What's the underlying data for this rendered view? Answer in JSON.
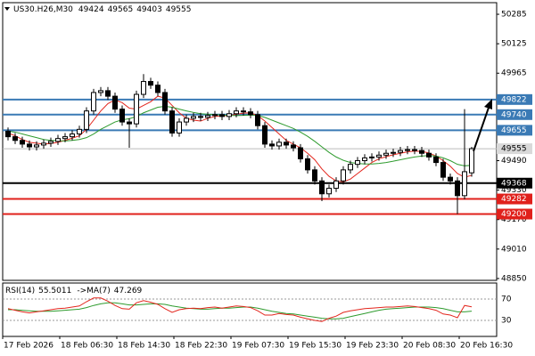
{
  "chart_data": {
    "type": "candlestick",
    "title": "US30.H26,M30",
    "categories": [
      "17 Feb 2026",
      null,
      null,
      null,
      null,
      null,
      null,
      null,
      "18 Feb 06:30",
      null,
      null,
      null,
      null,
      null,
      null,
      null,
      "18 Feb 14:30",
      null,
      null,
      null,
      null,
      null,
      null,
      null,
      "18 Feb 22:30",
      null,
      null,
      null,
      null,
      null,
      null,
      null,
      "19 Feb 07:30",
      null,
      null,
      null,
      null,
      null,
      null,
      null,
      "19 Feb 15:30",
      null,
      null,
      null,
      null,
      null,
      null,
      null,
      "19 Feb 23:30",
      null,
      null,
      null,
      null,
      null,
      null,
      null,
      "20 Feb 08:30",
      null,
      null,
      null,
      null,
      null,
      null,
      null,
      "20 Feb 16:30",
      null
    ],
    "open": [
      49650,
      49620,
      49600,
      49580,
      49565,
      49575,
      49585,
      49595,
      49610,
      49620,
      49635,
      49660,
      49760,
      49860,
      49870,
      49840,
      49770,
      49700,
      49690,
      49850,
      49920,
      49900,
      49860,
      49760,
      49640,
      49700,
      49720,
      49730,
      49725,
      49735,
      49740,
      49730,
      49745,
      49760,
      49755,
      49740,
      49680,
      49580,
      49570,
      49590,
      49575,
      49560,
      49500,
      49440,
      49380,
      49310,
      49340,
      49380,
      49440,
      49470,
      49490,
      49505,
      49510,
      49520,
      49530,
      49535,
      49545,
      49550,
      49545,
      49530,
      49510,
      49480,
      49400,
      49380,
      49300,
      49424
    ],
    "high": [
      49670,
      49640,
      49620,
      49600,
      49595,
      49605,
      49615,
      49630,
      49640,
      49655,
      49680,
      49780,
      49880,
      49890,
      49890,
      49860,
      49790,
      49720,
      49870,
      49960,
      49940,
      49920,
      49880,
      49780,
      49720,
      49740,
      49750,
      49750,
      49755,
      49760,
      49760,
      49765,
      49780,
      49780,
      49775,
      49760,
      49700,
      49600,
      49610,
      49610,
      49595,
      49580,
      49520,
      49460,
      49400,
      49360,
      49400,
      49460,
      49490,
      49510,
      49525,
      49530,
      49540,
      49550,
      49555,
      49565,
      49570,
      49570,
      49565,
      49550,
      49530,
      49500,
      49420,
      49400,
      49770,
      49565
    ],
    "low": [
      49600,
      49580,
      49560,
      49545,
      49545,
      49555,
      49565,
      49575,
      49590,
      49600,
      49615,
      49640,
      49740,
      49840,
      49820,
      49750,
      49680,
      49560,
      49670,
      49830,
      49880,
      49840,
      49740,
      49620,
      49620,
      49680,
      49700,
      49705,
      49705,
      49715,
      49710,
      49710,
      49725,
      49735,
      49720,
      49660,
      49560,
      49550,
      49550,
      49555,
      49540,
      49480,
      49420,
      49360,
      49270,
      49290,
      49320,
      49360,
      49420,
      49450,
      49470,
      49485,
      49490,
      49500,
      49510,
      49515,
      49525,
      49525,
      49510,
      49490,
      49460,
      49380,
      49360,
      49200,
      49280,
      49403
    ],
    "close": [
      49620,
      49600,
      49580,
      49565,
      49575,
      49585,
      49595,
      49610,
      49620,
      49635,
      49660,
      49760,
      49860,
      49870,
      49840,
      49770,
      49700,
      49690,
      49850,
      49920,
      49900,
      49860,
      49760,
      49640,
      49700,
      49720,
      49730,
      49725,
      49735,
      49740,
      49730,
      49745,
      49760,
      49755,
      49740,
      49680,
      49580,
      49570,
      49590,
      49575,
      49560,
      49500,
      49440,
      49380,
      49310,
      49340,
      49380,
      49440,
      49470,
      49490,
      49505,
      49510,
      49520,
      49530,
      49535,
      49545,
      49550,
      49545,
      49530,
      49510,
      49480,
      49400,
      49380,
      49300,
      49430,
      49555
    ],
    "color_up": "#ffffff",
    "color_down": "#000000",
    "ylim": [
      48840,
      50348
    ],
    "yticks": [
      50285,
      50125,
      49965,
      49490,
      49330,
      49170,
      49010,
      48850
    ],
    "overlays": [
      {
        "color": "#e3261d",
        "values": [
          49640,
          49625,
          49605,
          49590,
          49585,
          49580,
          49583,
          49590,
          49600,
          49612,
          49625,
          49660,
          49710,
          49760,
          49800,
          49820,
          49805,
          49775,
          49770,
          49790,
          49810,
          49840,
          49830,
          49790,
          49750,
          49720,
          49710,
          49705,
          49720,
          49730,
          49733,
          49735,
          49742,
          49748,
          49750,
          49735,
          49705,
          49670,
          49635,
          49600,
          49580,
          49560,
          49530,
          49495,
          49445,
          49405,
          49380,
          49375,
          49390,
          49420,
          49450,
          49480,
          49500,
          49512,
          49522,
          49530,
          49538,
          49542,
          49540,
          49532,
          49515,
          49490,
          49460,
          49420,
          49400,
          49410
        ]
      },
      {
        "color": "#2e9b2e",
        "values": [
          49650,
          49645,
          49635,
          49625,
          49615,
          49605,
          49600,
          49598,
          49597,
          49600,
          49605,
          49615,
          49635,
          49660,
          49680,
          49700,
          49712,
          49718,
          49730,
          49750,
          49765,
          49780,
          49785,
          49780,
          49770,
          49760,
          49752,
          49745,
          49742,
          49740,
          49738,
          49736,
          49735,
          49736,
          49738,
          49736,
          49725,
          49710,
          49695,
          49680,
          49665,
          49645,
          49622,
          49595,
          49565,
          49535,
          49510,
          49492,
          49480,
          49475,
          49472,
          49472,
          49475,
          49480,
          49487,
          49495,
          49503,
          49510,
          49515,
          49518,
          49515,
          49505,
          49490,
          49470,
          49462,
          49465
        ]
      }
    ],
    "levels": [
      {
        "value": 49822,
        "color": "#3a7ab5"
      },
      {
        "value": 49740,
        "color": "#3a7ab5"
      },
      {
        "value": 49655,
        "color": "#3a7ab5"
      },
      {
        "value": 49368,
        "color": "#000000"
      },
      {
        "value": 49282,
        "color": "#e0201b"
      },
      {
        "value": 49200,
        "color": "#e0201b"
      }
    ],
    "rsi": {
      "label": "RSI(14)",
      "ma_label": "->MA(7)",
      "ylim": [
        0,
        100
      ],
      "yticks": [
        30,
        70
      ],
      "color": "#e3261d",
      "ma_color": "#2e9b2e",
      "values": [
        52,
        49,
        46,
        44,
        46,
        48,
        50,
        52,
        53,
        55,
        57,
        65,
        72,
        72,
        66,
        58,
        52,
        51,
        63,
        67,
        64,
        60,
        52,
        45,
        50,
        52,
        53,
        52,
        54,
        55,
        53,
        55,
        57,
        56,
        54,
        48,
        40,
        40,
        43,
        41,
        40,
        36,
        33,
        30,
        28,
        34,
        38,
        45,
        48,
        50,
        52,
        53,
        54,
        55,
        55,
        56,
        57,
        56,
        54,
        52,
        49,
        42,
        40,
        35,
        58,
        55.5011
      ],
      "ma_values": [
        50,
        50,
        49,
        48,
        47,
        47,
        47,
        48,
        49,
        50,
        51,
        54,
        58,
        61,
        63,
        63,
        61,
        59,
        59,
        60,
        61,
        61,
        60,
        57,
        55,
        53,
        52,
        51,
        51,
        52,
        53,
        53,
        54,
        55,
        55,
        53,
        50,
        47,
        45,
        43,
        42,
        40,
        38,
        36,
        34,
        33,
        33,
        34,
        37,
        40,
        43,
        46,
        49,
        51,
        52,
        53,
        54,
        55,
        55,
        55,
        54,
        52,
        49,
        46,
        46,
        47.269
      ]
    }
  }
}
